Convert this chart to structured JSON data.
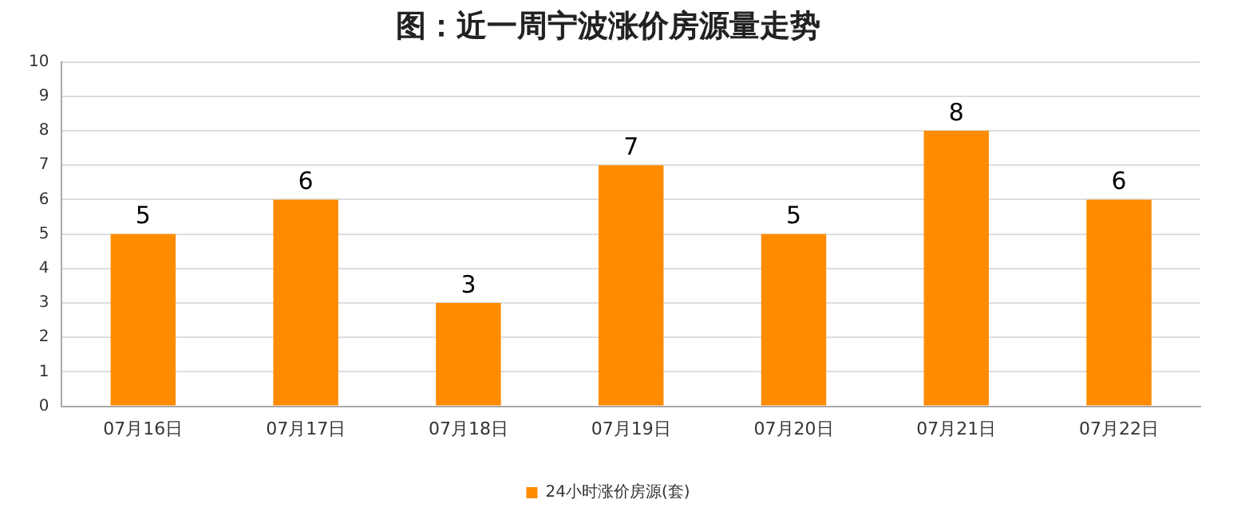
{
  "chart_data": {
    "type": "bar",
    "title": "图：近一周宁波涨价房源量走势",
    "categories": [
      "07月16日",
      "07月17日",
      "07月18日",
      "07月19日",
      "07月20日",
      "07月21日",
      "07月22日"
    ],
    "series": [
      {
        "name": "24小时涨价房源(套)",
        "color": "#ff8c00",
        "values": [
          5,
          6,
          3,
          7,
          5,
          8,
          6
        ]
      }
    ],
    "ylim": [
      0,
      10
    ],
    "yticks": [
      0,
      1,
      2,
      3,
      4,
      5,
      6,
      7,
      8,
      9,
      10
    ],
    "grid": "y",
    "legend": "bottom",
    "data_labels": true
  }
}
